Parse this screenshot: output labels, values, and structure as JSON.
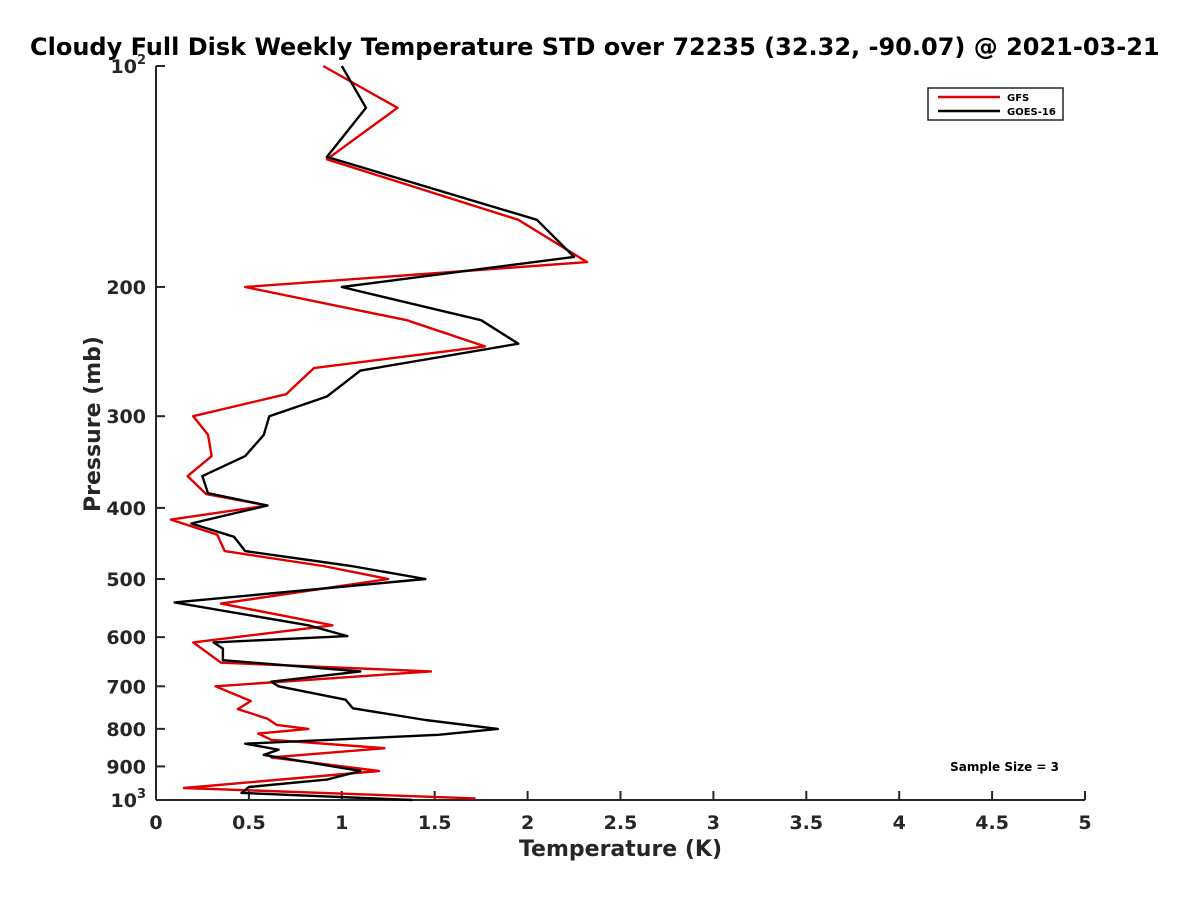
{
  "chart_data": {
    "type": "line",
    "title": "Cloudy Full Disk Weekly Temperature STD over 72235 (32.32, -90.07) @ 2021-03-21",
    "xlabel": "Temperature (K)",
    "ylabel": "Pressure (mb)",
    "xlim": [
      0,
      5
    ],
    "ylim": [
      100,
      1000
    ],
    "yscale": "log",
    "y_reversed": true,
    "xticks": [
      "0",
      "0.5",
      "1",
      "1.5",
      "2",
      "2.5",
      "3",
      "3.5",
      "4",
      "4.5",
      "5"
    ],
    "yticks": [
      {
        "value": 100,
        "base": "10",
        "exp": "2"
      },
      {
        "value": 200,
        "label": "200"
      },
      {
        "value": 300,
        "label": "300"
      },
      {
        "value": 400,
        "label": "400"
      },
      {
        "value": 500,
        "label": "500"
      },
      {
        "value": 600,
        "label": "600"
      },
      {
        "value": 700,
        "label": "700"
      },
      {
        "value": 800,
        "label": "800"
      },
      {
        "value": 900,
        "label": "900"
      },
      {
        "value": 1000,
        "base": "10",
        "exp": "3"
      }
    ],
    "legend": {
      "position": "top-right",
      "entries": [
        "GFS",
        "GOES-16"
      ]
    },
    "annotation": "Sample Size = 3",
    "series": [
      {
        "name": "GFS",
        "color": "#e00000",
        "points": [
          [
            0.9,
            100
          ],
          [
            1.3,
            114
          ],
          [
            0.92,
            134
          ],
          [
            1.95,
            162
          ],
          [
            2.32,
            185
          ],
          [
            0.48,
            200
          ],
          [
            1.35,
            222
          ],
          [
            1.77,
            241
          ],
          [
            0.85,
            258
          ],
          [
            0.7,
            280
          ],
          [
            0.2,
            300
          ],
          [
            0.28,
            318
          ],
          [
            0.3,
            340
          ],
          [
            0.17,
            362
          ],
          [
            0.27,
            383
          ],
          [
            0.6,
            397
          ],
          [
            0.08,
            415
          ],
          [
            0.33,
            435
          ],
          [
            0.37,
            458
          ],
          [
            0.9,
            480
          ],
          [
            1.25,
            500
          ],
          [
            0.35,
            540
          ],
          [
            0.95,
            578
          ],
          [
            0.2,
            610
          ],
          [
            0.35,
            650
          ],
          [
            1.48,
            668
          ],
          [
            0.32,
            700
          ],
          [
            0.51,
            733
          ],
          [
            0.44,
            752
          ],
          [
            0.6,
            775
          ],
          [
            0.65,
            790
          ],
          [
            0.82,
            800
          ],
          [
            0.55,
            812
          ],
          [
            0.62,
            828
          ],
          [
            1.23,
            850
          ],
          [
            0.62,
            875
          ],
          [
            1.2,
            913
          ],
          [
            0.15,
            963
          ],
          [
            1.72,
            995
          ]
        ]
      },
      {
        "name": "GOES-16",
        "color": "#000000",
        "points": [
          [
            1.0,
            100
          ],
          [
            1.13,
            114
          ],
          [
            0.92,
            133
          ],
          [
            2.05,
            162
          ],
          [
            2.25,
            182
          ],
          [
            1.0,
            200
          ],
          [
            1.75,
            222
          ],
          [
            1.95,
            239
          ],
          [
            1.1,
            260
          ],
          [
            0.92,
            282
          ],
          [
            0.61,
            300
          ],
          [
            0.58,
            318
          ],
          [
            0.48,
            340
          ],
          [
            0.25,
            362
          ],
          [
            0.28,
            382
          ],
          [
            0.6,
            397
          ],
          [
            0.19,
            420
          ],
          [
            0.42,
            438
          ],
          [
            0.48,
            458
          ],
          [
            1.05,
            480
          ],
          [
            1.45,
            500
          ],
          [
            0.1,
            538
          ],
          [
            0.82,
            578
          ],
          [
            1.03,
            598
          ],
          [
            0.31,
            610
          ],
          [
            0.36,
            622
          ],
          [
            0.36,
            645
          ],
          [
            1.1,
            668
          ],
          [
            0.62,
            690
          ],
          [
            0.66,
            700
          ],
          [
            1.02,
            730
          ],
          [
            1.06,
            750
          ],
          [
            1.45,
            778
          ],
          [
            1.84,
            800
          ],
          [
            1.52,
            815
          ],
          [
            0.48,
            838
          ],
          [
            0.66,
            854
          ],
          [
            0.58,
            868
          ],
          [
            1.1,
            913
          ],
          [
            0.92,
            938
          ],
          [
            0.5,
            960
          ],
          [
            0.46,
            978
          ],
          [
            1.38,
            1000
          ]
        ]
      }
    ]
  }
}
